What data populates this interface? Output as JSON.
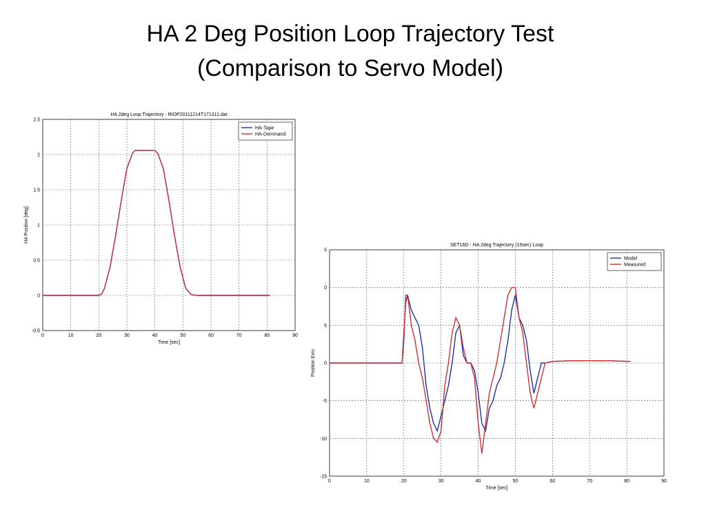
{
  "title": [
    "HA 2 Deg Position Loop Trajectory Test",
    "(Comparison to Servo Model)"
  ],
  "chart_data": [
    {
      "type": "line",
      "title": "HA 2deg Loop Trajectory - RIOP20111214T171311.dat",
      "xlabel": "Time [sec]",
      "ylabel": "HA Position [deg]",
      "xlim": [
        0,
        90
      ],
      "xticks": [
        0,
        10,
        20,
        30,
        40,
        50,
        60,
        70,
        80,
        90
      ],
      "ylim": [
        -0.5,
        2.5
      ],
      "yticks": [
        -0.5,
        0,
        0.5,
        1,
        1.5,
        2,
        2.5
      ],
      "grid": true,
      "legend": "upper right",
      "series": [
        {
          "name": "HA-Tape",
          "color": "#1f2fa8",
          "x": [
            0,
            20,
            21,
            22,
            24,
            26,
            28,
            30,
            32,
            33,
            35,
            38,
            40,
            41,
            43,
            45,
            47,
            49,
            51,
            53,
            55,
            60,
            70,
            81
          ],
          "values": [
            0,
            0,
            0.02,
            0.1,
            0.4,
            0.85,
            1.35,
            1.8,
            2.02,
            2.06,
            2.06,
            2.06,
            2.06,
            2.02,
            1.8,
            1.35,
            0.85,
            0.4,
            0.1,
            0.01,
            0,
            0,
            0,
            0
          ]
        },
        {
          "name": "HA-Demmand",
          "color": "#d03030",
          "x": [
            0,
            20,
            21,
            22,
            24,
            26,
            28,
            30,
            32,
            33,
            35,
            38,
            40,
            41,
            43,
            45,
            47,
            49,
            51,
            53,
            55,
            60,
            70,
            81
          ],
          "values": [
            0,
            0,
            0.02,
            0.1,
            0.4,
            0.85,
            1.35,
            1.8,
            2.02,
            2.06,
            2.06,
            2.06,
            2.06,
            2.02,
            1.8,
            1.35,
            0.85,
            0.4,
            0.1,
            0.01,
            0,
            0,
            0,
            0
          ]
        }
      ]
    },
    {
      "type": "line",
      "title": "SET16D - HA 2deg Trajectory (15sec) Loop",
      "xlabel": "Time [sec]",
      "ylabel": "Position Erro",
      "xlim": [
        0,
        90
      ],
      "xticks": [
        0,
        10,
        20,
        30,
        40,
        50,
        60,
        70,
        80,
        90
      ],
      "ylim": [
        -15,
        15
      ],
      "yticks": [
        -15,
        -10,
        -5,
        0,
        {
          "value": 5,
          "label": "5"
        },
        {
          "value": 10,
          "label": "0"
        },
        {
          "value": 15,
          "label": "5"
        }
      ],
      "grid": true,
      "legend": "upper right",
      "series": [
        {
          "name": "Model",
          "color": "#1f2fa8",
          "x": [
            0,
            19.5,
            20,
            20.5,
            21,
            21.5,
            22,
            23,
            24,
            25,
            26,
            27,
            28,
            29,
            30,
            31,
            32,
            33,
            34,
            35,
            36,
            37,
            38,
            39,
            40,
            41,
            42,
            43,
            44,
            45,
            46,
            47,
            48,
            49,
            50,
            51,
            52,
            53,
            54,
            55,
            56,
            57,
            58,
            60,
            65,
            70,
            75,
            81
          ],
          "values": [
            0,
            0,
            4,
            8,
            9,
            8,
            7,
            6,
            5,
            2,
            -3,
            -6,
            -8,
            -9,
            -7,
            -5,
            -3,
            0,
            4,
            5,
            1,
            0,
            0,
            -1,
            -4,
            -8,
            -9,
            -6,
            -5,
            -3,
            -2,
            0,
            3,
            7,
            9,
            6,
            5,
            3,
            -1,
            -4,
            -2,
            0,
            0,
            0.2,
            0.3,
            0.3,
            0.3,
            0.2
          ]
        },
        {
          "name": "Measured",
          "color": "#d03030",
          "x": [
            0,
            19.5,
            20,
            20.5,
            21,
            21.5,
            22,
            23,
            24,
            25,
            26,
            27,
            28,
            29,
            30,
            31,
            32,
            33,
            34,
            35,
            36,
            37,
            38,
            39,
            40,
            41,
            42,
            43,
            44,
            45,
            46,
            47,
            48,
            49,
            50,
            51,
            52,
            53,
            54,
            55,
            56,
            57,
            58,
            60,
            65,
            70,
            75,
            81
          ],
          "values": [
            0,
            0,
            3,
            9,
            9,
            7,
            5,
            3,
            0,
            -2,
            -5,
            -8,
            -10,
            -10.5,
            -9,
            -3,
            0,
            4,
            6,
            5,
            2,
            0,
            0,
            -2,
            -8,
            -12,
            -8,
            -4,
            -2,
            0,
            3,
            6,
            9,
            10,
            10,
            6,
            4,
            0,
            -4,
            -6,
            -4,
            -2,
            0,
            0.2,
            0.3,
            0.3,
            0.3,
            0.2
          ]
        }
      ]
    }
  ]
}
